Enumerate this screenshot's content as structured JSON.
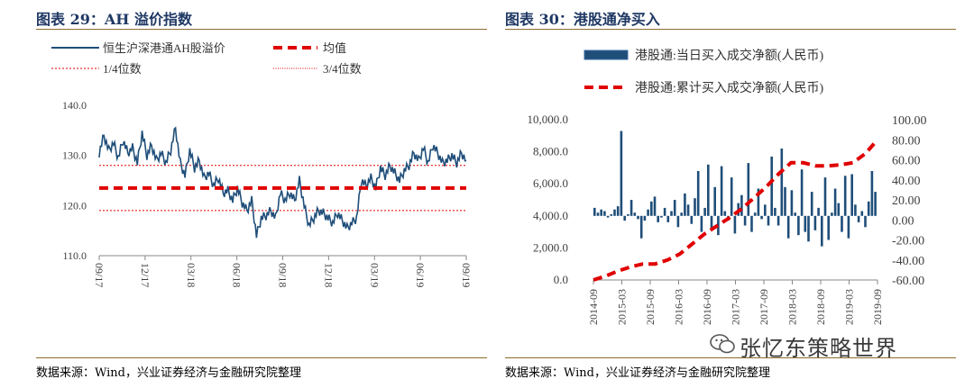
{
  "left": {
    "title": "图表 29：AH 溢价指数",
    "source": "数据来源：Wind，兴业证券经济与金融研究院整理",
    "legend": {
      "series": "恒生沪深港通AH股溢价",
      "mean": "均值",
      "q1": "1/4位数",
      "q3": "3/4位数"
    }
  },
  "right": {
    "title": "图表 30：港股通净买入",
    "source": "数据来源：Wind，兴业证券经济与金融研究院整理",
    "legend": {
      "bar": "港股通:当日买入成交净额(人民币)",
      "line": "港股通:累计买入成交净额(人民币)"
    }
  },
  "watermark": "张忆东策略世界",
  "colors": {
    "series": "#1f4e79",
    "mean": "#e00000",
    "quartile": "#e00000",
    "bar": "#1f4e79",
    "cumulative": "#e00000",
    "title": "#1f3864"
  },
  "chart_data": [
    {
      "type": "line",
      "title": "",
      "y_ticks": [
        "140.0",
        "130.0",
        "120.0",
        "110.0"
      ],
      "ylim": [
        110,
        140
      ],
      "x_ticks": [
        "09/17",
        "12/17",
        "03/18",
        "06/18",
        "09/18",
        "12/18",
        "03/19",
        "06/19",
        "09/19"
      ],
      "mean": 123.5,
      "q1": 119.0,
      "q3": 128.0,
      "series": [
        {
          "name": "恒生沪深港通AH股溢价",
          "values": [
            130.5,
            134.0,
            131.0,
            132.5,
            129.5,
            133.0,
            130.5,
            131.5,
            128.5,
            134.5,
            130.0,
            132.0,
            129.0,
            130.5,
            128.5,
            131.0,
            135.5,
            128.5,
            126.0,
            131.0,
            127.5,
            129.0,
            125.5,
            126.5,
            124.0,
            125.5,
            122.5,
            123.0,
            121.0,
            123.5,
            120.5,
            119.0,
            121.0,
            114.0,
            117.5,
            118.0,
            119.0,
            117.5,
            122.5,
            121.0,
            122.5,
            121.0,
            125.0,
            120.0,
            116.0,
            117.5,
            119.0,
            118.5,
            117.5,
            116.5,
            118.5,
            117.0,
            115.5,
            116.5,
            117.5,
            125.0,
            124.0,
            125.5,
            123.5,
            127.5,
            126.0,
            128.0,
            126.5,
            125.0,
            127.0,
            128.0,
            130.5,
            129.0,
            131.5,
            128.5,
            132.0,
            130.5,
            128.5,
            129.0,
            130.0,
            128.5,
            130.5,
            129.0
          ]
        }
      ]
    },
    {
      "type": "bar",
      "title": "",
      "y_ticks_left": [
        "10,000.0",
        "8,000.0",
        "6,000.0",
        "4,000.0",
        "2,000.0",
        "0.0"
      ],
      "ylim_left": [
        0,
        10000
      ],
      "y_ticks_right": [
        "100.00",
        "80.00",
        "60.00",
        "40.00",
        "20.00",
        "0.00",
        "-20.00",
        "-40.00",
        "-60.00"
      ],
      "ylim_right": [
        -60,
        100
      ],
      "x_ticks": [
        "2014-09",
        "2015-03",
        "2015-09",
        "2016-03",
        "2016-09",
        "2017-03",
        "2017-09",
        "2018-03",
        "2018-09",
        "2019-03",
        "2019-09"
      ],
      "bar_baseline": 4000,
      "series": [
        {
          "name": "港股通:当日买入成交净额(人民币)",
          "axis": "left",
          "values": [
            4500,
            4200,
            4400,
            4300,
            3900,
            4100,
            4400,
            4600,
            9300,
            3700,
            4100,
            5000,
            4200,
            3800,
            2600,
            3700,
            4400,
            4900,
            5200,
            3600,
            3900,
            4500,
            3600,
            4300,
            5000,
            3300,
            4200,
            5400,
            4700,
            3500,
            5100,
            6800,
            3000,
            4500,
            7200,
            3200,
            5800,
            2800,
            7100,
            4300,
            3700,
            6400,
            2900,
            4800,
            5300,
            3400,
            7300,
            3000,
            4200,
            5700,
            3800,
            4700,
            3400,
            7700,
            4500,
            3400,
            8200,
            5800,
            2600,
            5600,
            4200,
            2800,
            6900,
            3000,
            2400,
            5500,
            3100,
            4500,
            2100,
            6400,
            2500,
            4200,
            5700,
            4800,
            3000,
            6500,
            2600,
            6600,
            4700,
            3600,
            4300,
            3300,
            4900,
            6800,
            5500
          ]
        },
        {
          "name": "港股通:累计买入成交净额(人民币)",
          "axis": "right",
          "values": [
            -60,
            -56,
            -51,
            -47,
            -44,
            -44,
            -40,
            -34,
            -24,
            -14,
            -6,
            2,
            11,
            22,
            33,
            46,
            57,
            57,
            54,
            54,
            55,
            57,
            66,
            80
          ]
        }
      ]
    }
  ]
}
